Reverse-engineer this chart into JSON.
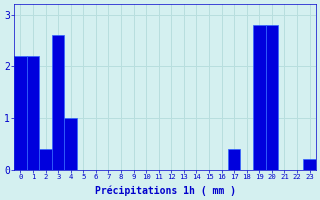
{
  "values": [
    2.2,
    2.2,
    0.4,
    2.6,
    1.0,
    0.0,
    0.0,
    0.0,
    0.0,
    0.0,
    0.0,
    0.0,
    0.0,
    0.0,
    0.0,
    0.0,
    0.0,
    0.4,
    0.0,
    2.8,
    2.8,
    0.0,
    0.0,
    0.2
  ],
  "categories": [
    "0",
    "1",
    "2",
    "3",
    "4",
    "5",
    "6",
    "7",
    "8",
    "9",
    "10",
    "11",
    "12",
    "13",
    "14",
    "15",
    "16",
    "17",
    "18",
    "19",
    "20",
    "21",
    "22",
    "23"
  ],
  "bar_color": "#0000dd",
  "bar_edge_color": "#3366ff",
  "background_color": "#d4f0f0",
  "grid_color": "#b8dede",
  "xlabel": "Précipitations 1h ( mm )",
  "xlabel_color": "#0000cc",
  "tick_color": "#0000cc",
  "ylim": [
    0,
    3.2
  ],
  "yticks": [
    0,
    1,
    2,
    3
  ]
}
